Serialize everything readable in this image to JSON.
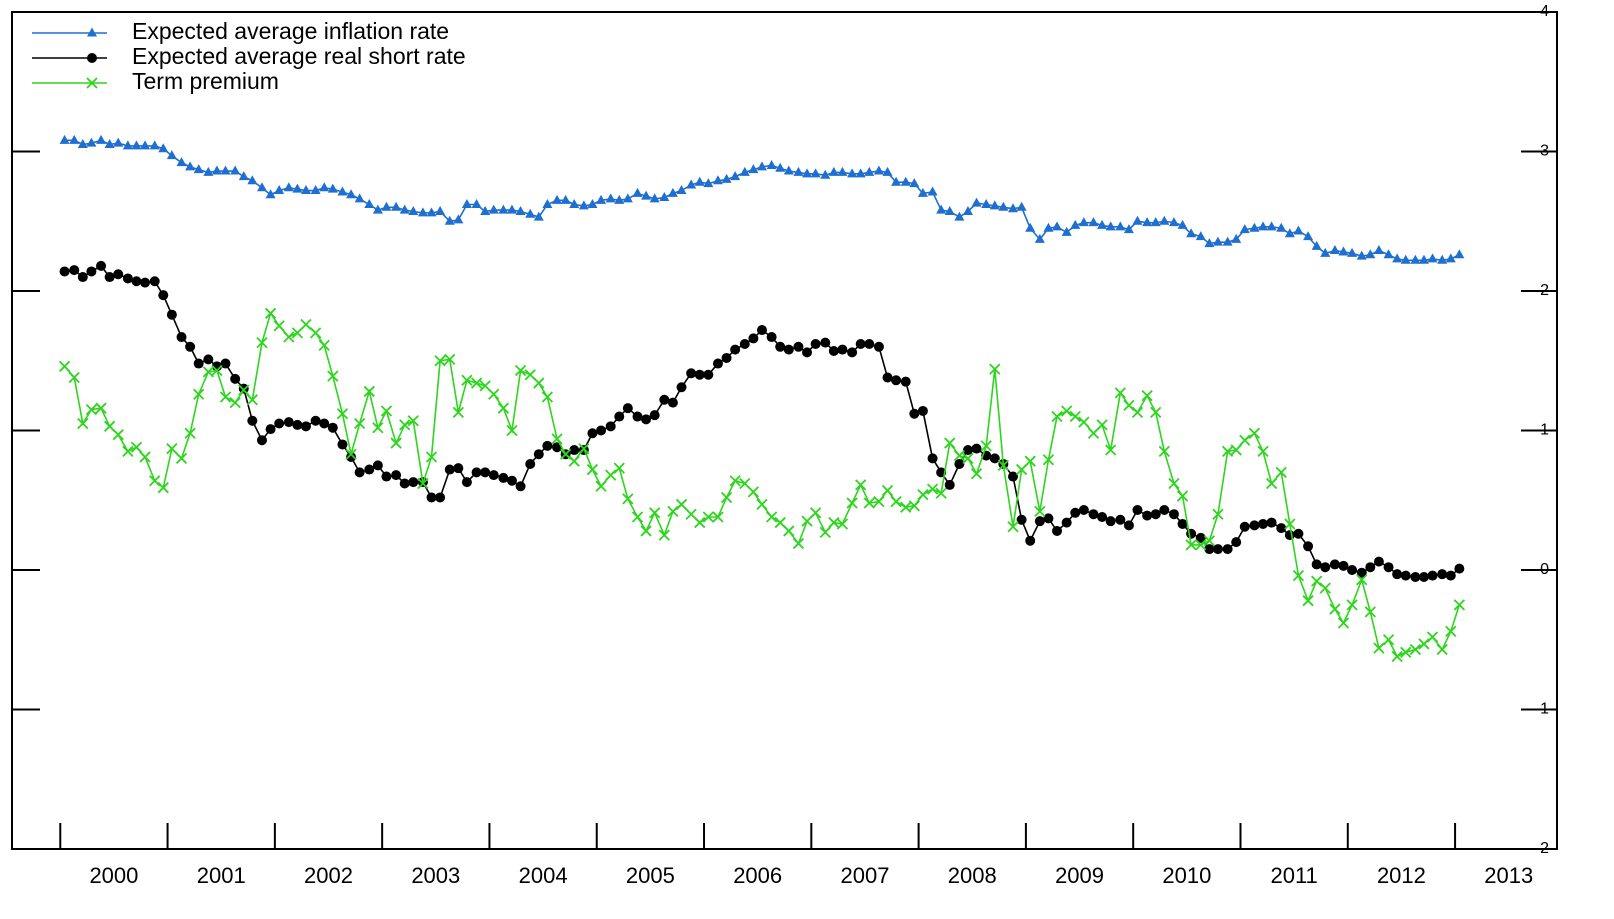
{
  "chart_data": {
    "type": "line",
    "x": [
      2000.04,
      2000.13,
      2000.21,
      2000.29,
      2000.38,
      2000.46,
      2000.54,
      2000.63,
      2000.71,
      2000.79,
      2000.88,
      2000.96,
      2001.04,
      2001.13,
      2001.21,
      2001.29,
      2001.38,
      2001.46,
      2001.54,
      2001.63,
      2001.71,
      2001.79,
      2001.88,
      2001.96,
      2002.04,
      2002.13,
      2002.21,
      2002.29,
      2002.38,
      2002.46,
      2002.54,
      2002.63,
      2002.71,
      2002.79,
      2002.88,
      2002.96,
      2003.04,
      2003.13,
      2003.21,
      2003.29,
      2003.38,
      2003.46,
      2003.54,
      2003.63,
      2003.71,
      2003.79,
      2003.88,
      2003.96,
      2004.04,
      2004.13,
      2004.21,
      2004.29,
      2004.38,
      2004.46,
      2004.54,
      2004.63,
      2004.71,
      2004.79,
      2004.88,
      2004.96,
      2005.04,
      2005.13,
      2005.21,
      2005.29,
      2005.38,
      2005.46,
      2005.54,
      2005.63,
      2005.71,
      2005.79,
      2005.88,
      2005.96,
      2006.04,
      2006.13,
      2006.21,
      2006.29,
      2006.38,
      2006.46,
      2006.54,
      2006.63,
      2006.71,
      2006.79,
      2006.88,
      2006.96,
      2007.04,
      2007.13,
      2007.21,
      2007.29,
      2007.38,
      2007.46,
      2007.54,
      2007.63,
      2007.71,
      2007.79,
      2007.88,
      2007.96,
      2008.04,
      2008.13,
      2008.21,
      2008.29,
      2008.38,
      2008.46,
      2008.54,
      2008.63,
      2008.71,
      2008.79,
      2008.88,
      2008.96,
      2009.04,
      2009.13,
      2009.21,
      2009.29,
      2009.38,
      2009.46,
      2009.54,
      2009.63,
      2009.71,
      2009.79,
      2009.88,
      2009.96,
      2010.04,
      2010.13,
      2010.21,
      2010.29,
      2010.38,
      2010.46,
      2010.54,
      2010.63,
      2010.71,
      2010.79,
      2010.88,
      2010.96,
      2011.04,
      2011.13,
      2011.21,
      2011.29,
      2011.38,
      2011.46,
      2011.54,
      2011.63,
      2011.71,
      2011.79,
      2011.88,
      2011.96,
      2012.04,
      2012.13,
      2012.21,
      2012.29,
      2012.38,
      2012.46,
      2012.54,
      2012.63,
      2012.71,
      2012.79,
      2012.88,
      2012.96,
      2013.04
    ],
    "series": [
      {
        "name": "Expected average inflation rate",
        "color": "#1f6fd0",
        "marker": "triangle",
        "values": [
          3.08,
          3.08,
          3.05,
          3.06,
          3.08,
          3.05,
          3.06,
          3.04,
          3.04,
          3.04,
          3.04,
          3.02,
          2.97,
          2.92,
          2.89,
          2.87,
          2.85,
          2.86,
          2.86,
          2.86,
          2.82,
          2.79,
          2.74,
          2.69,
          2.72,
          2.74,
          2.73,
          2.72,
          2.72,
          2.74,
          2.73,
          2.71,
          2.69,
          2.66,
          2.62,
          2.58,
          2.6,
          2.6,
          2.58,
          2.57,
          2.56,
          2.56,
          2.57,
          2.5,
          2.51,
          2.62,
          2.62,
          2.57,
          2.58,
          2.58,
          2.58,
          2.57,
          2.55,
          2.53,
          2.62,
          2.65,
          2.65,
          2.62,
          2.61,
          2.62,
          2.65,
          2.66,
          2.65,
          2.66,
          2.7,
          2.68,
          2.66,
          2.67,
          2.7,
          2.72,
          2.76,
          2.78,
          2.77,
          2.79,
          2.8,
          2.82,
          2.85,
          2.87,
          2.89,
          2.9,
          2.88,
          2.86,
          2.85,
          2.84,
          2.84,
          2.83,
          2.85,
          2.85,
          2.84,
          2.84,
          2.85,
          2.86,
          2.85,
          2.78,
          2.78,
          2.77,
          2.7,
          2.71,
          2.58,
          2.57,
          2.53,
          2.57,
          2.63,
          2.62,
          2.61,
          2.6,
          2.59,
          2.6,
          2.45,
          2.37,
          2.45,
          2.46,
          2.42,
          2.47,
          2.49,
          2.49,
          2.47,
          2.46,
          2.46,
          2.44,
          2.5,
          2.49,
          2.49,
          2.5,
          2.49,
          2.47,
          2.41,
          2.39,
          2.34,
          2.35,
          2.35,
          2.37,
          2.44,
          2.45,
          2.46,
          2.46,
          2.45,
          2.41,
          2.43,
          2.39,
          2.32,
          2.27,
          2.29,
          2.28,
          2.27,
          2.25,
          2.26,
          2.29,
          2.26,
          2.23,
          2.22,
          2.22,
          2.22,
          2.23,
          2.22,
          2.23,
          2.26
        ]
      },
      {
        "name": "Expected average real short rate",
        "color": "#000000",
        "marker": "circle",
        "values": [
          2.14,
          2.15,
          2.1,
          2.14,
          2.18,
          2.1,
          2.12,
          2.09,
          2.07,
          2.06,
          2.07,
          1.97,
          1.83,
          1.67,
          1.6,
          1.48,
          1.51,
          1.46,
          1.48,
          1.37,
          1.3,
          1.07,
          0.93,
          1.01,
          1.05,
          1.06,
          1.04,
          1.03,
          1.07,
          1.05,
          1.02,
          0.9,
          0.81,
          0.7,
          0.72,
          0.75,
          0.67,
          0.68,
          0.62,
          0.63,
          0.63,
          0.52,
          0.52,
          0.72,
          0.73,
          0.63,
          0.7,
          0.7,
          0.68,
          0.66,
          0.64,
          0.6,
          0.76,
          0.83,
          0.89,
          0.88,
          0.83,
          0.86,
          0.86,
          0.98,
          1.0,
          1.03,
          1.1,
          1.16,
          1.1,
          1.08,
          1.11,
          1.22,
          1.2,
          1.31,
          1.41,
          1.4,
          1.4,
          1.48,
          1.52,
          1.58,
          1.62,
          1.66,
          1.72,
          1.67,
          1.6,
          1.58,
          1.6,
          1.56,
          1.62,
          1.63,
          1.57,
          1.58,
          1.56,
          1.62,
          1.62,
          1.6,
          1.38,
          1.36,
          1.35,
          1.12,
          1.14,
          0.8,
          0.7,
          0.61,
          0.76,
          0.86,
          0.87,
          0.82,
          0.8,
          0.76,
          0.67,
          0.36,
          0.21,
          0.35,
          0.37,
          0.28,
          0.34,
          0.41,
          0.43,
          0.4,
          0.38,
          0.35,
          0.36,
          0.32,
          0.43,
          0.39,
          0.4,
          0.43,
          0.4,
          0.33,
          0.26,
          0.23,
          0.15,
          0.15,
          0.15,
          0.2,
          0.31,
          0.32,
          0.33,
          0.34,
          0.3,
          0.25,
          0.26,
          0.17,
          0.04,
          0.02,
          0.04,
          0.03,
          0.0,
          -0.02,
          0.02,
          0.06,
          0.02,
          -0.03,
          -0.04,
          -0.05,
          -0.05,
          -0.04,
          -0.03,
          -0.04,
          0.01
        ]
      },
      {
        "name": "Term premium",
        "color": "#2ed51e",
        "marker": "x",
        "values": [
          1.46,
          1.38,
          1.05,
          1.15,
          1.16,
          1.03,
          0.97,
          0.85,
          0.88,
          0.81,
          0.64,
          0.59,
          0.87,
          0.8,
          0.98,
          1.26,
          1.42,
          1.43,
          1.24,
          1.2,
          1.29,
          1.22,
          1.63,
          1.84,
          1.75,
          1.67,
          1.7,
          1.76,
          1.7,
          1.61,
          1.39,
          1.12,
          0.83,
          1.05,
          1.28,
          1.02,
          1.14,
          0.91,
          1.04,
          1.07,
          0.62,
          0.81,
          1.5,
          1.51,
          1.13,
          1.36,
          1.34,
          1.32,
          1.26,
          1.16,
          1.0,
          1.43,
          1.4,
          1.34,
          1.24,
          0.94,
          0.83,
          0.78,
          0.87,
          0.72,
          0.6,
          0.68,
          0.73,
          0.51,
          0.38,
          0.28,
          0.41,
          0.25,
          0.42,
          0.47,
          0.4,
          0.34,
          0.38,
          0.38,
          0.52,
          0.64,
          0.62,
          0.56,
          0.47,
          0.38,
          0.34,
          0.28,
          0.19,
          0.35,
          0.41,
          0.27,
          0.34,
          0.33,
          0.48,
          0.61,
          0.48,
          0.49,
          0.57,
          0.49,
          0.45,
          0.46,
          0.54,
          0.58,
          0.55,
          0.91,
          0.82,
          0.8,
          0.69,
          0.89,
          1.44,
          0.75,
          0.31,
          0.72,
          0.78,
          0.42,
          0.79,
          1.1,
          1.14,
          1.1,
          1.06,
          0.98,
          1.04,
          0.86,
          1.27,
          1.18,
          1.13,
          1.25,
          1.13,
          0.85,
          0.62,
          0.53,
          0.18,
          0.18,
          0.21,
          0.4,
          0.85,
          0.86,
          0.93,
          0.98,
          0.85,
          0.62,
          0.7,
          0.33,
          -0.04,
          -0.22,
          -0.08,
          -0.13,
          -0.28,
          -0.38,
          -0.25,
          -0.07,
          -0.3,
          -0.56,
          -0.5,
          -0.62,
          -0.59,
          -0.57,
          -0.53,
          -0.48,
          -0.57,
          -0.44,
          -0.25
        ]
      }
    ],
    "xlim": [
      1999.55,
      2013.95
    ],
    "xticks": [
      2000,
      2001,
      2002,
      2003,
      2004,
      2005,
      2006,
      2007,
      2008,
      2009,
      2010,
      2011,
      2012,
      2013
    ],
    "ylim": [
      -2,
      4
    ],
    "yticks": [
      -2,
      -1,
      0,
      1,
      2,
      3,
      4
    ],
    "y_axis_side": "right",
    "grid": false,
    "legend": "upper left"
  }
}
